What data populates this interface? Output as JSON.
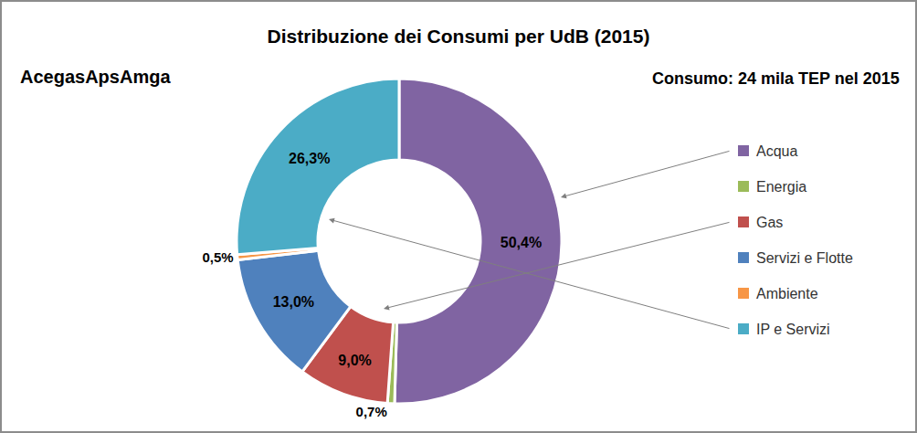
{
  "chart_data": {
    "type": "pie",
    "title": "Distribuzione dei Consumi per UdB (2015)",
    "annotations": [
      "AcegasApsAmga",
      "Consumo: 24 mila TEP nel 2015"
    ],
    "categories": [
      "Acqua",
      "Energia",
      "Gas",
      "Servizi e Flotte",
      "Ambiente",
      "IP e Servizi"
    ],
    "values": [
      50.4,
      0.7,
      9.0,
      13.0,
      0.5,
      26.3
    ],
    "value_labels": [
      "50,4%",
      "0,7%",
      "9,0%",
      "13,0%",
      "0,5%",
      "26,3%"
    ],
    "colors": [
      "#8064a2",
      "#9bbb59",
      "#c0504d",
      "#4f81bd",
      "#f79646",
      "#4bacc6"
    ],
    "data_labels": true,
    "legend": "right"
  }
}
